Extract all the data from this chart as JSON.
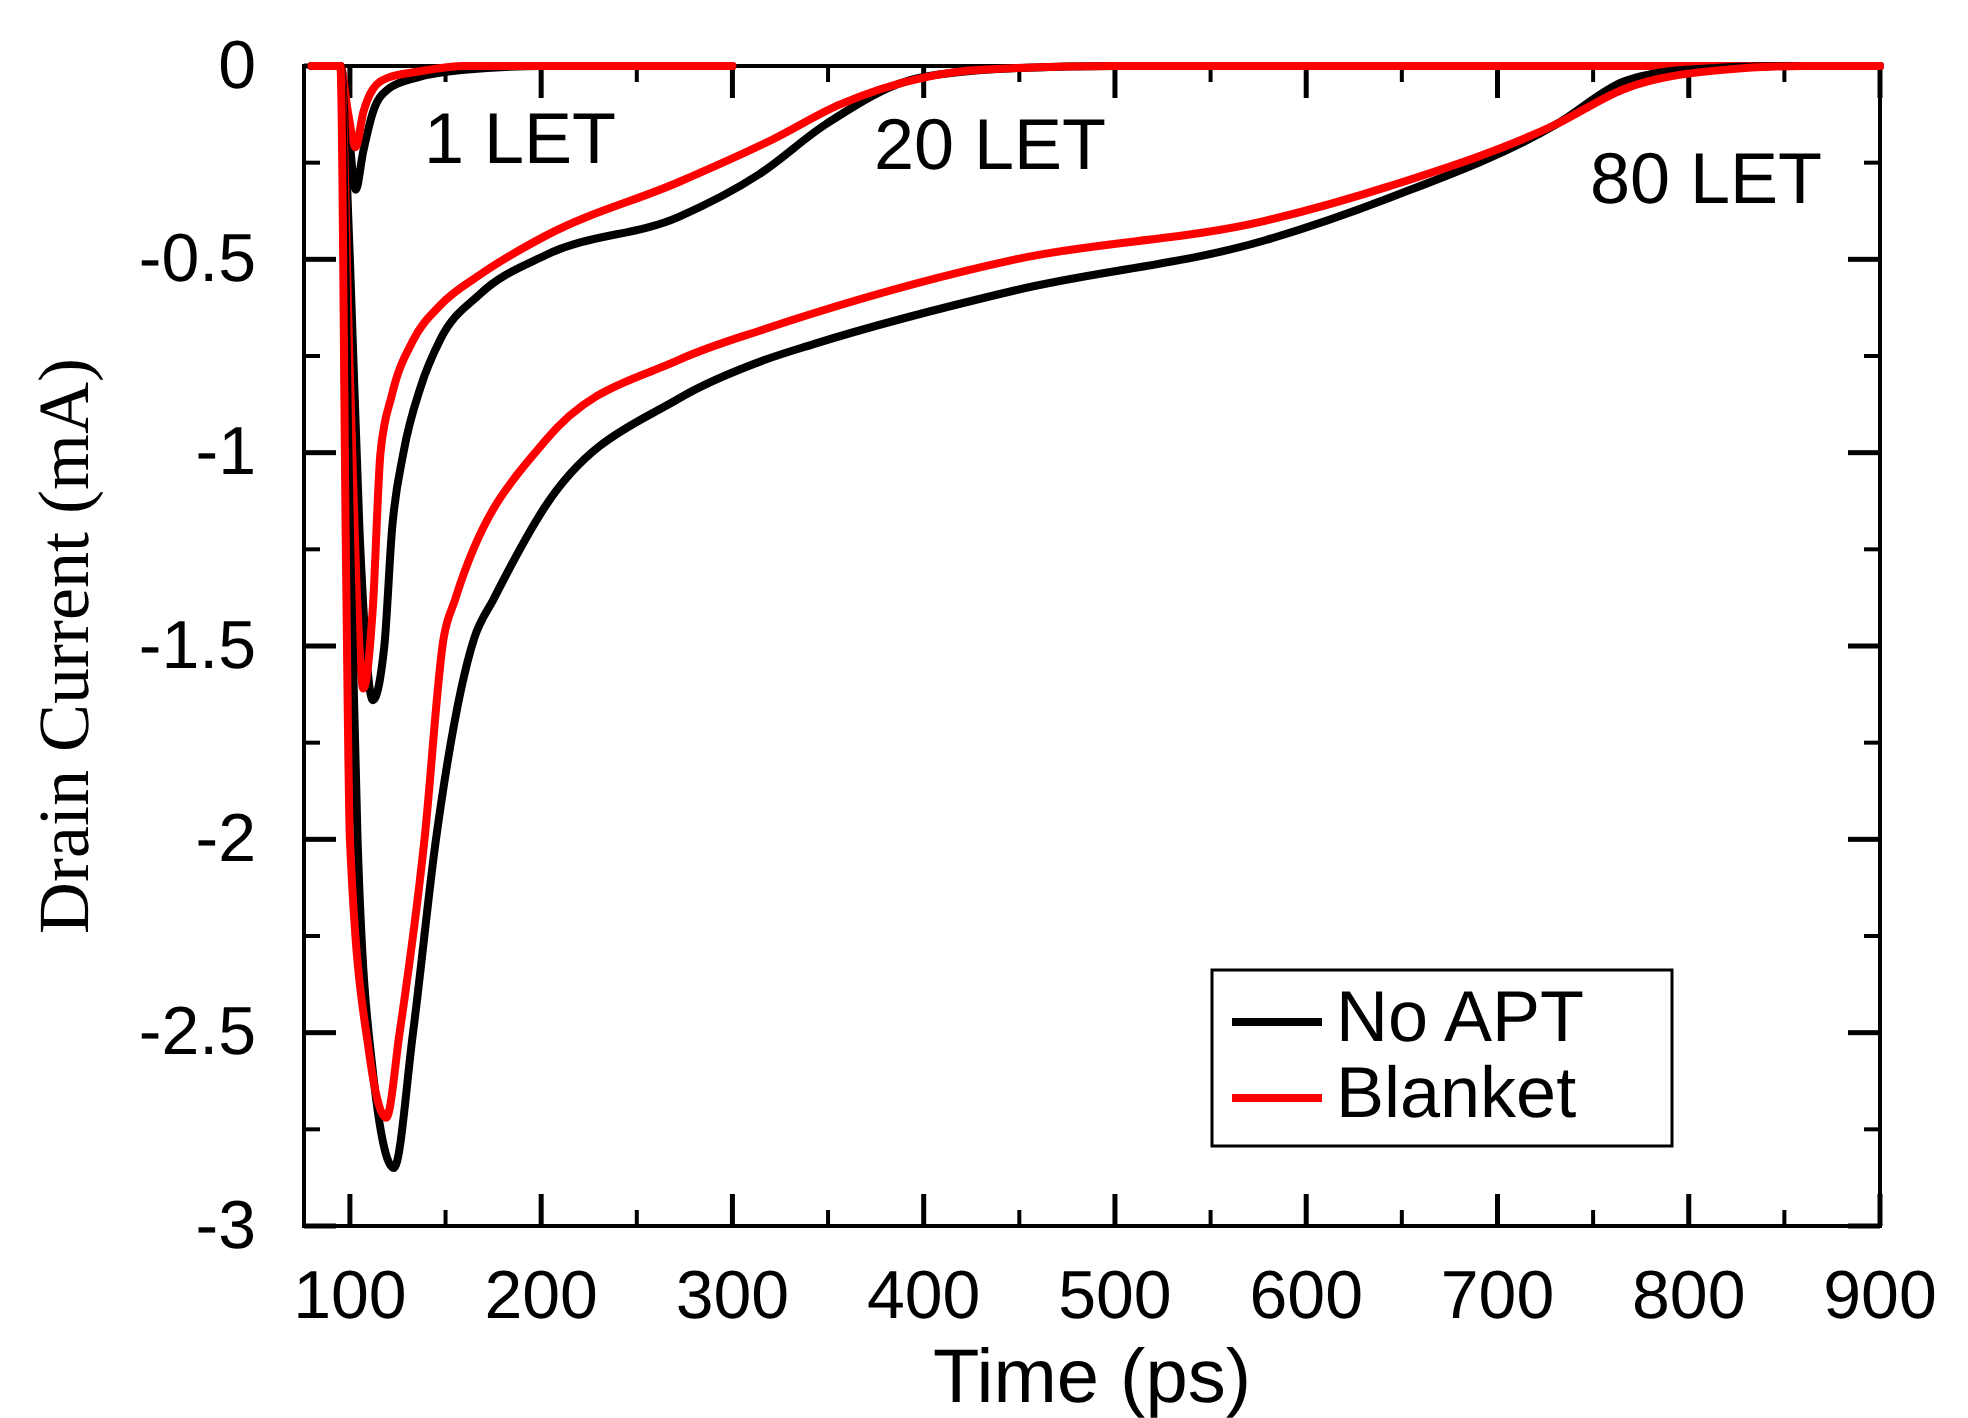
{
  "chart_data": {
    "type": "line",
    "xlabel": "Time (ps)",
    "ylabel": "Drain Current (mA)",
    "xlim": [
      76,
      900
    ],
    "xticks": [
      100,
      200,
      300,
      400,
      500,
      600,
      700,
      800,
      900
    ],
    "ylim": [
      -3,
      0
    ],
    "yticks": [
      -3,
      -2.5,
      -2,
      -1.5,
      -1,
      -0.5,
      0
    ],
    "legend": "bottom right",
    "grid": false,
    "marker": "none",
    "line_style": "solid",
    "annotations": [
      "1 LET",
      "20 LET",
      "80 LET"
    ],
    "series": [
      {
        "name": "No APT",
        "color": "#000000",
        "x": [
          80,
          95,
          99,
          103,
          107,
          112,
          120,
          135,
          160,
          200,
          300
        ],
        "values": [
          0,
          0,
          -0.15,
          -0.32,
          -0.22,
          -0.12,
          -0.06,
          -0.03,
          -0.01,
          0,
          0
        ]
      },
      {
        "name": "Blanket",
        "color": "#ff0000",
        "x": [
          80,
          95,
          99,
          103,
          107,
          112,
          120,
          135,
          160,
          200,
          300
        ],
        "values": [
          0,
          0,
          -0.12,
          -0.21,
          -0.12,
          -0.06,
          -0.03,
          -0.015,
          0,
          0,
          0
        ]
      },
      {
        "color": "#000000",
        "x": [
          80,
          95,
          100,
          105,
          112,
          118,
          122,
          128,
          137,
          147,
          168,
          202,
          272,
          314,
          349,
          398,
          450,
          500,
          900
        ],
        "values": [
          0,
          0,
          -0.5,
          -1.2,
          -1.64,
          -1.5,
          -1.2,
          -1.0,
          -0.83,
          -0.71,
          -0.59,
          -0.49,
          -0.39,
          -0.28,
          -0.15,
          -0.03,
          -0.005,
          0,
          0
        ]
      },
      {
        "color": "#ff0000",
        "x": [
          80,
          95,
          100,
          104,
          107,
          112,
          116,
          122,
          133,
          147,
          168,
          202,
          272,
          321,
          356,
          400,
          430,
          500,
          900
        ],
        "values": [
          0,
          0,
          -0.8,
          -1.4,
          -1.61,
          -1.4,
          -1.0,
          -0.85,
          -0.71,
          -0.62,
          -0.54,
          -0.44,
          -0.3,
          -0.19,
          -0.1,
          -0.03,
          -0.01,
          0,
          0
        ]
      },
      {
        "color": "#000000",
        "x": [
          80,
          95,
          100,
          104,
          112,
          123,
          133,
          145,
          165,
          175,
          202,
          272,
          317,
          342,
          448,
          579,
          644,
          731,
          766,
          797,
          850,
          900
        ],
        "values": [
          0,
          0,
          -1.2,
          -2.0,
          -2.6,
          -2.85,
          -2.5,
          -2.0,
          -1.48,
          -1.38,
          -1.14,
          -0.86,
          -0.76,
          -0.72,
          -0.58,
          -0.45,
          -0.34,
          -0.15,
          -0.04,
          -0.01,
          0,
          0
        ]
      },
      {
        "color": "#ff0000",
        "x": [
          80,
          95,
          98,
          100,
          110,
          119,
          126,
          139,
          149,
          155,
          202,
          272,
          317,
          342,
          448,
          579,
          644,
          731,
          766,
          818,
          860,
          900
        ],
        "values": [
          0,
          0,
          -1.3,
          -2.0,
          -2.55,
          -2.72,
          -2.5,
          -2.0,
          -1.48,
          -1.38,
          -0.97,
          -0.76,
          -0.68,
          -0.64,
          -0.5,
          -0.4,
          -0.31,
          -0.15,
          -0.06,
          -0.01,
          0,
          0
        ]
      }
    ]
  }
}
